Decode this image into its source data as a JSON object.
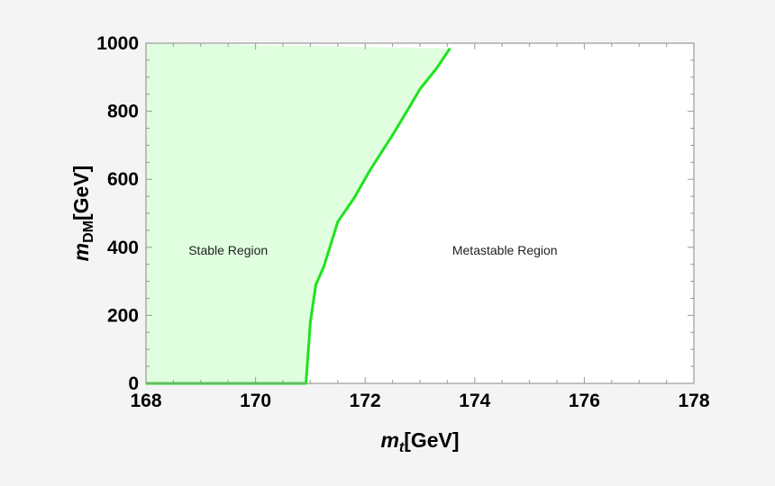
{
  "chart_data": {
    "type": "area",
    "xlabel": {
      "main": "m",
      "sub": "t",
      "unit": "[GeV]"
    },
    "ylabel": {
      "main": "m",
      "sub": "DM",
      "unit": "[GeV]"
    },
    "xlim": [
      168,
      178
    ],
    "ylim": [
      0,
      1000
    ],
    "x_ticks": [
      168,
      170,
      172,
      174,
      176,
      178
    ],
    "y_ticks": [
      0,
      200,
      400,
      600,
      800,
      1000
    ],
    "x_tick_labels": [
      "168",
      "170",
      "172",
      "174",
      "176",
      "178"
    ],
    "y_tick_labels": [
      "0",
      "200",
      "400",
      "600",
      "800",
      "1000"
    ],
    "grid": false,
    "series": [
      {
        "x": [
          168.0,
          170.92,
          171.0,
          171.1,
          171.25,
          171.5,
          171.8,
          172.1,
          172.5,
          172.8,
          173.0,
          173.3,
          173.55
        ],
        "y": [
          0,
          0,
          180,
          290,
          345,
          475,
          545,
          630,
          730,
          810,
          865,
          925,
          985
        ]
      }
    ],
    "annotations": [
      {
        "text": "Stable Region",
        "x": 169.5,
        "y": 378
      },
      {
        "text": "Metastable Region",
        "x": 174.55,
        "y": 378
      }
    ],
    "colors": {
      "line": "#1ee31e",
      "fill": "#dfffdf",
      "frame": "#999999",
      "background": "#f4f4f4"
    }
  }
}
